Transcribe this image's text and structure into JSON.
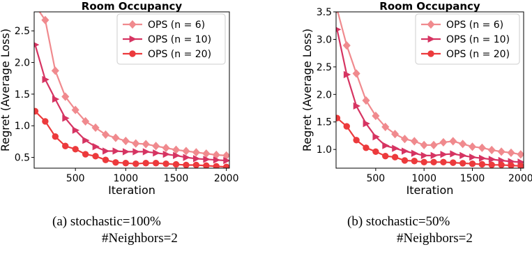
{
  "chart_data": [
    {
      "type": "line",
      "title": "Room Occupancy",
      "xlabel": "Iteration",
      "ylabel": "Regret (Average Loss)",
      "xlim": [
        90,
        2030
      ],
      "ylim": [
        0.33,
        2.8
      ],
      "xticks": [
        500,
        1000,
        1500,
        2000
      ],
      "yticks": [
        0.5,
        1.0,
        1.5,
        2.0,
        2.5
      ],
      "ytick_labels": [
        "0.5",
        "1.0",
        "1.5",
        "2.0",
        "2.5"
      ],
      "grid": false,
      "legend_position": "top-right",
      "x": [
        100,
        200,
        300,
        400,
        500,
        600,
        700,
        800,
        900,
        1000,
        1100,
        1200,
        1300,
        1400,
        1500,
        1600,
        1700,
        1800,
        1900,
        2000
      ],
      "series": [
        {
          "name": "OPS (n = 6)",
          "color": "#f08a8e",
          "marker": "diamond",
          "values": [
            2.9,
            2.67,
            1.87,
            1.46,
            1.25,
            1.07,
            0.97,
            0.86,
            0.81,
            0.76,
            0.72,
            0.71,
            0.68,
            0.65,
            0.62,
            0.6,
            0.58,
            0.56,
            0.54,
            0.53
          ]
        },
        {
          "name": "OPS (n = 10)",
          "color": "#d63462",
          "marker": "triangle-right",
          "values": [
            2.28,
            1.73,
            1.42,
            1.12,
            0.93,
            0.77,
            0.67,
            0.6,
            0.6,
            0.59,
            0.59,
            0.59,
            0.57,
            0.55,
            0.53,
            0.5,
            0.48,
            0.47,
            0.46,
            0.45
          ]
        },
        {
          "name": "OPS (n = 20)",
          "color": "#ec3a3c",
          "marker": "circle",
          "values": [
            1.23,
            1.07,
            0.83,
            0.68,
            0.63,
            0.55,
            0.52,
            0.46,
            0.42,
            0.41,
            0.4,
            0.41,
            0.41,
            0.4,
            0.39,
            0.38,
            0.38,
            0.37,
            0.36,
            0.35
          ]
        }
      ],
      "caption_line1": "(a) stochastic=100%",
      "caption_line2": "#Neighbors=2"
    },
    {
      "type": "line",
      "title": "Room Occupancy",
      "xlabel": "Iteration",
      "ylabel": "Regret (Average Loss)",
      "xlim": [
        90,
        2030
      ],
      "ylim": [
        0.66,
        3.5
      ],
      "xticks": [
        500,
        1000,
        1500,
        2000
      ],
      "yticks": [
        1.0,
        1.5,
        2.0,
        2.5,
        3.0,
        3.5
      ],
      "ytick_labels": [
        "1.0",
        "1.5",
        "2.0",
        "2.5",
        "3.0",
        "3.5"
      ],
      "grid": false,
      "legend_position": "top-right",
      "x": [
        100,
        200,
        300,
        400,
        500,
        600,
        700,
        800,
        900,
        1000,
        1100,
        1200,
        1300,
        1400,
        1500,
        1600,
        1700,
        1800,
        1900,
        2000
      ],
      "series": [
        {
          "name": "OPS (n = 6)",
          "color": "#f08a8e",
          "marker": "diamond",
          "values": [
            3.55,
            2.89,
            2.38,
            1.89,
            1.61,
            1.41,
            1.28,
            1.19,
            1.15,
            1.08,
            1.08,
            1.13,
            1.15,
            1.1,
            1.05,
            1.03,
            0.99,
            0.96,
            0.94,
            0.91
          ]
        },
        {
          "name": "OPS (n = 10)",
          "color": "#d63462",
          "marker": "triangle-right",
          "values": [
            3.18,
            2.36,
            1.79,
            1.47,
            1.23,
            1.07,
            1.02,
            0.97,
            0.93,
            0.89,
            0.89,
            0.91,
            0.92,
            0.89,
            0.86,
            0.84,
            0.82,
            0.8,
            0.78,
            0.77
          ]
        },
        {
          "name": "OPS (n = 20)",
          "color": "#ec3a3c",
          "marker": "circle",
          "values": [
            1.57,
            1.42,
            1.17,
            1.03,
            0.96,
            0.88,
            0.86,
            0.8,
            0.79,
            0.77,
            0.77,
            0.77,
            0.76,
            0.75,
            0.74,
            0.73,
            0.72,
            0.72,
            0.71,
            0.7
          ]
        }
      ],
      "caption_line1": "(b) stochastic=50%",
      "caption_line2": "#Neighbors=2"
    }
  ]
}
